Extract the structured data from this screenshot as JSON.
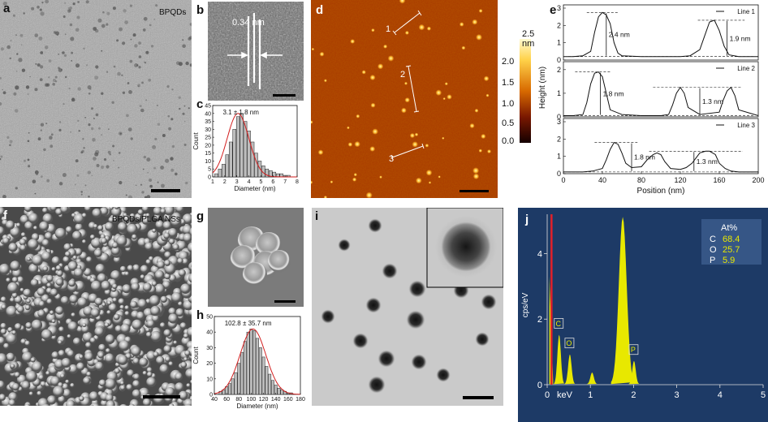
{
  "labels": {
    "a": "a",
    "b": "b",
    "c": "c",
    "d": "d",
    "e": "e",
    "f": "f",
    "g": "g",
    "h": "h",
    "i": "i",
    "j": "j"
  },
  "panel_a": {
    "tag": "BPQDs"
  },
  "panel_b": {
    "spacing": "0.34 nm"
  },
  "panel_d": {
    "colorbar_unit": "2.5 nm",
    "colorbar_ticks": [
      "2.0",
      "1.5",
      "1.0",
      "0.5",
      "0.0"
    ],
    "line_labels": [
      "1",
      "2",
      "3"
    ]
  },
  "panel_f": {
    "tag": "BPQDs/PLGA NSs"
  },
  "colors": {
    "afm_dark": "#3a0800",
    "afm_mid": "#a83a00",
    "afm_bright": "#ffe27a",
    "eds_bg": "#1d3a66",
    "eds_peak": "#e8e800",
    "eds_marker": "#e0202a",
    "fit_curve": "#d21e1e"
  },
  "chart_data": [
    {
      "id": "c",
      "type": "bar",
      "annotation": "3.1 ± 1.8 nm",
      "xlabel": "Diameter (nm)",
      "ylabel": "Count",
      "xticks": [
        "1",
        "2",
        "3",
        "4",
        "5",
        "6",
        "7",
        "8"
      ],
      "yticks": [
        "0",
        "5",
        "10",
        "15",
        "20",
        "25",
        "30",
        "35",
        "40",
        "45"
      ],
      "xlim": [
        1,
        8
      ],
      "ylim": [
        0,
        45
      ],
      "x": [
        1.3,
        1.6,
        1.9,
        2.2,
        2.5,
        2.8,
        3.1,
        3.4,
        3.7,
        4.0,
        4.3,
        4.6,
        4.9,
        5.2,
        5.5,
        5.8,
        6.1,
        6.4,
        6.7,
        7.0,
        7.3
      ],
      "values": [
        2,
        5,
        8,
        14,
        22,
        30,
        38,
        40,
        35,
        29,
        22,
        15,
        10,
        7,
        5,
        4,
        3,
        2,
        2,
        1,
        1
      ],
      "fit": {
        "type": "gaussian",
        "mean": 3.1,
        "sigma": 0.9,
        "amp": 40
      }
    },
    {
      "id": "e",
      "type": "line",
      "ylabel": "Height (nm)",
      "xlabel": "Position (nm)",
      "xticks": [
        "0",
        "40",
        "80",
        "120",
        "160",
        "200"
      ],
      "xlim": [
        0,
        200
      ],
      "subplots": [
        {
          "name": "Line 1",
          "yticks": [
            "0",
            "1",
            "2",
            "3"
          ],
          "ylim": [
            0,
            3
          ],
          "x": [
            0,
            10,
            20,
            28,
            32,
            36,
            40,
            44,
            48,
            52,
            56,
            60,
            80,
            100,
            120,
            130,
            140,
            145,
            150,
            155,
            160,
            165,
            170,
            180,
            200
          ],
          "y": [
            0.2,
            0.2,
            0.25,
            0.5,
            1.6,
            2.5,
            2.75,
            2.6,
            2.1,
            1.0,
            0.4,
            0.25,
            0.2,
            0.2,
            0.2,
            0.25,
            0.6,
            1.4,
            2.2,
            2.3,
            1.7,
            0.8,
            0.3,
            0.2,
            0.2
          ],
          "annotations": [
            "2.4 nm",
            "1.9 nm"
          ]
        },
        {
          "name": "Line 2",
          "yticks": [
            "0",
            "1",
            "2"
          ],
          "ylim": [
            0,
            2.2
          ],
          "x": [
            0,
            10,
            20,
            24,
            28,
            32,
            36,
            40,
            44,
            48,
            60,
            80,
            100,
            108,
            112,
            116,
            120,
            124,
            128,
            140,
            160,
            164,
            168,
            172,
            176,
            180,
            200
          ],
          "y": [
            0.05,
            0.05,
            0.1,
            0.6,
            1.4,
            1.85,
            1.9,
            1.7,
            1.0,
            0.3,
            0.1,
            0.05,
            0.05,
            0.1,
            0.5,
            1.0,
            1.25,
            1.0,
            0.4,
            0.1,
            0.2,
            0.7,
            1.1,
            1.25,
            0.9,
            0.3,
            0.05
          ],
          "annotations": [
            "1.8 nm",
            "1.3 nm"
          ]
        },
        {
          "name": "Line 3",
          "yticks": [
            "0",
            "1",
            "2",
            "3"
          ],
          "ylim": [
            0,
            3
          ],
          "x": [
            0,
            20,
            30,
            40,
            44,
            48,
            52,
            56,
            60,
            64,
            70,
            80,
            86,
            92,
            96,
            100,
            104,
            110,
            120,
            126,
            132,
            136,
            140,
            146,
            150,
            156,
            160,
            166,
            172,
            180,
            200
          ],
          "y": [
            0.1,
            0.1,
            0.15,
            0.3,
            0.8,
            1.4,
            1.8,
            1.7,
            1.2,
            0.6,
            0.35,
            0.4,
            0.8,
            1.1,
            1.2,
            1.1,
            0.7,
            0.3,
            0.25,
            0.35,
            0.6,
            0.9,
            1.2,
            1.3,
            1.3,
            1.1,
            0.6,
            0.3,
            0.15,
            0.1,
            0.1
          ],
          "annotations": [
            "1.8 nm",
            "1.3 nm"
          ]
        }
      ]
    },
    {
      "id": "h",
      "type": "bar",
      "annotation": "102.8 ± 35.7 nm",
      "xlabel": "Diameter (nm)",
      "ylabel": "Count",
      "xticks": [
        "40",
        "60",
        "80",
        "100",
        "120",
        "140",
        "160",
        "180"
      ],
      "yticks": [
        "0",
        "10",
        "20",
        "30",
        "40",
        "50"
      ],
      "xlim": [
        40,
        180
      ],
      "ylim": [
        0,
        50
      ],
      "x": [
        50,
        55,
        60,
        65,
        70,
        75,
        80,
        85,
        90,
        95,
        100,
        105,
        110,
        115,
        120,
        125,
        130,
        135,
        140,
        145,
        150,
        155,
        160,
        165
      ],
      "values": [
        2,
        3,
        5,
        7,
        10,
        14,
        20,
        27,
        34,
        40,
        42,
        41,
        36,
        30,
        24,
        18,
        13,
        9,
        6,
        4,
        3,
        2,
        1,
        1
      ],
      "fit": {
        "type": "gaussian",
        "mean": 102.8,
        "sigma": 21,
        "amp": 42
      }
    },
    {
      "id": "j",
      "type": "line",
      "ylabel": "cps/eV",
      "xlabel": "keV",
      "xticks": [
        "0",
        "1",
        "2",
        "3",
        "4",
        "5"
      ],
      "xlim": [
        0,
        5
      ],
      "yticks": [
        "0",
        "2",
        "4"
      ],
      "ylim": [
        0,
        5.2
      ],
      "peaks": [
        {
          "label": "C",
          "x": 0.277,
          "y": 1.5
        },
        {
          "label": "O",
          "x": 0.525,
          "y": 0.9
        },
        {
          "label": "",
          "x": 1.04,
          "y": 0.35
        },
        {
          "label": "",
          "x": 1.75,
          "y": 5.1
        },
        {
          "label": "P",
          "x": 2.01,
          "y": 0.7
        }
      ],
      "table": {
        "header": "At%",
        "rows": [
          {
            "el": "C",
            "val": "68.4"
          },
          {
            "el": "O",
            "val": "25.7"
          },
          {
            "el": "P",
            "val": "5.9"
          }
        ]
      }
    }
  ]
}
